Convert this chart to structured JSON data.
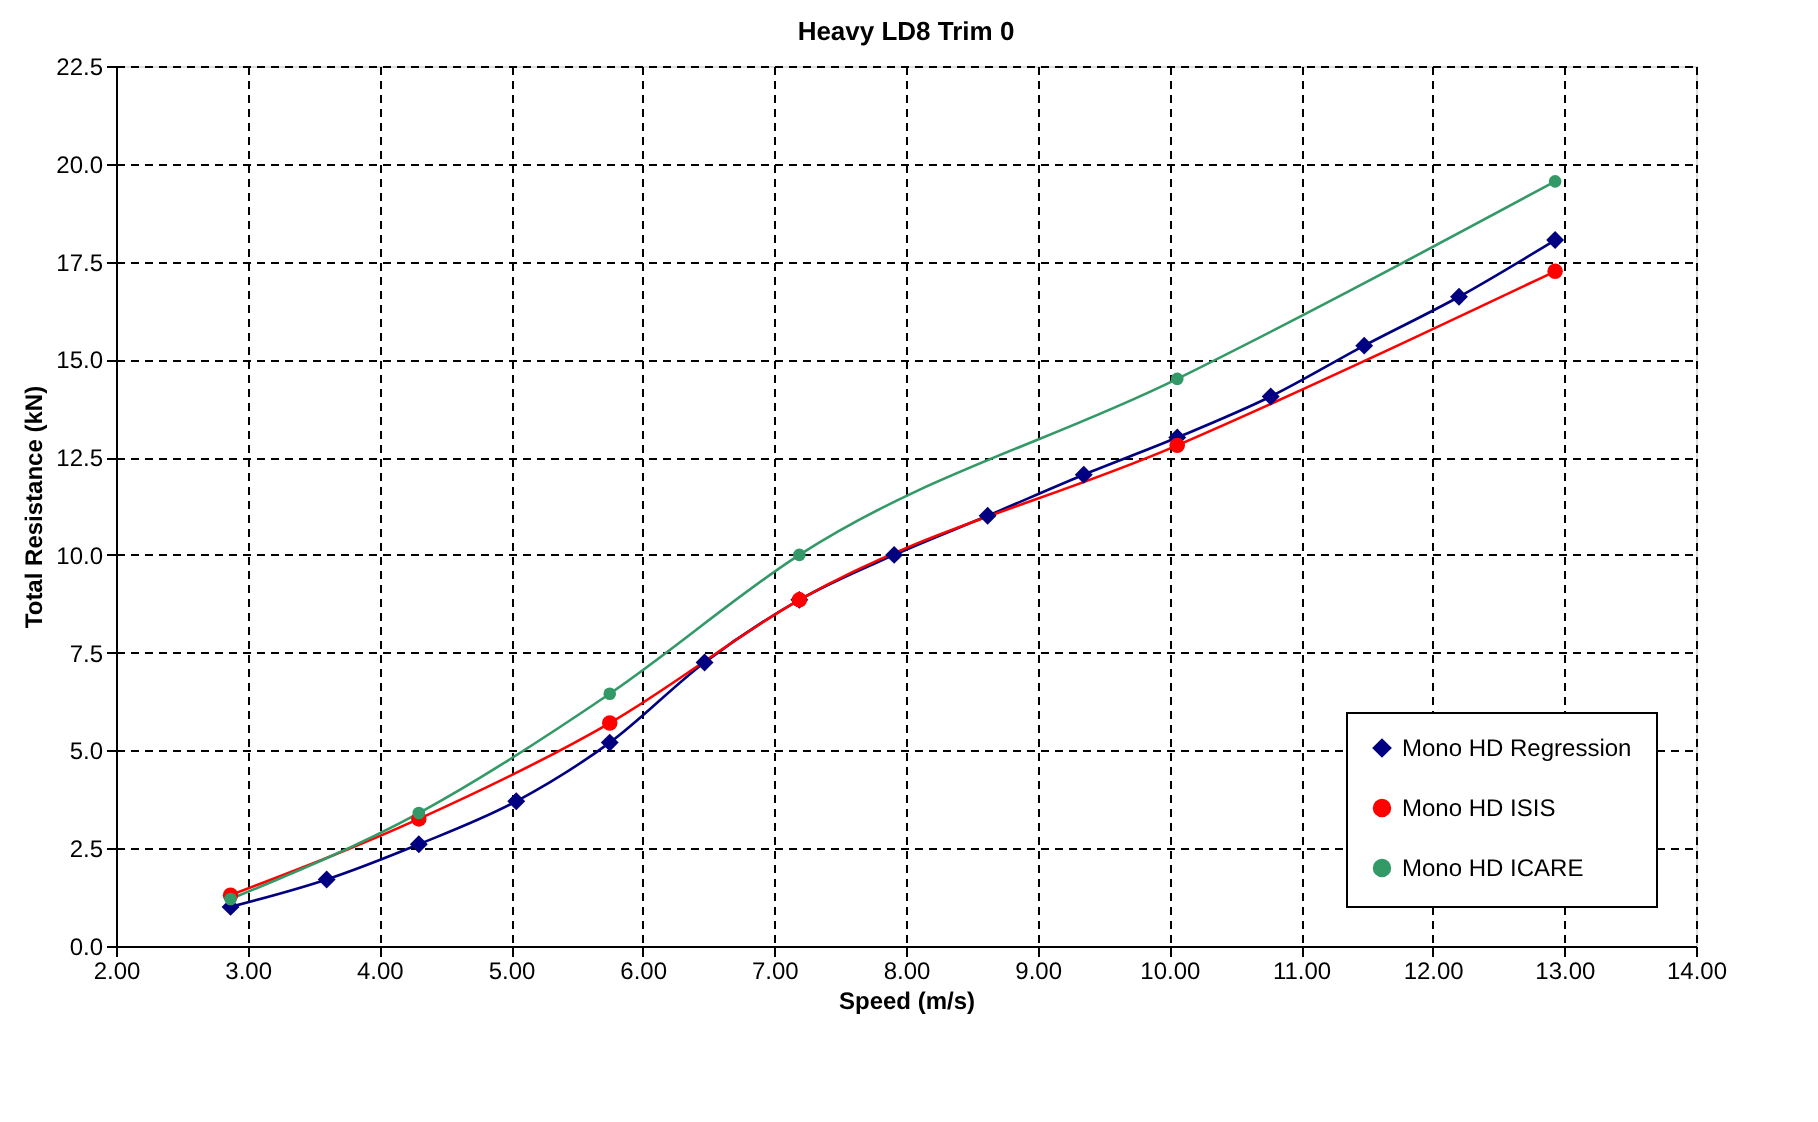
{
  "chart_data": {
    "type": "line",
    "title": "Heavy LD8 Trim 0",
    "xlabel": "Speed (m/s)",
    "ylabel": "Total Resistance (kN)",
    "xlim": [
      2,
      14
    ],
    "xticks": [
      {
        "value": 2,
        "label": "2.00"
      },
      {
        "value": 3,
        "label": "3.00"
      },
      {
        "value": 4,
        "label": "4.00"
      },
      {
        "value": 5,
        "label": "5.00"
      },
      {
        "value": 6,
        "label": "6.00"
      },
      {
        "value": 7,
        "label": "7.00"
      },
      {
        "value": 8,
        "label": "8.00"
      },
      {
        "value": 9,
        "label": "9.00"
      },
      {
        "value": 10,
        "label": "10.00"
      },
      {
        "value": 11,
        "label": "11.00"
      },
      {
        "value": 12,
        "label": "12.00"
      },
      {
        "value": 13,
        "label": "13.00"
      },
      {
        "value": 14,
        "label": "14.00"
      }
    ],
    "ylim": [
      0,
      22.5
    ],
    "yticks": [
      {
        "value": 0,
        "label": "0.0"
      },
      {
        "value": 2.5,
        "label": "2.5"
      },
      {
        "value": 5,
        "label": "5.0"
      },
      {
        "value": 7.5,
        "label": "7.5"
      },
      {
        "value": 10,
        "label": "10.0"
      },
      {
        "value": 12.5,
        "label": "12.5"
      },
      {
        "value": 15,
        "label": "15.0"
      },
      {
        "value": 17.5,
        "label": "17.5"
      },
      {
        "value": 20,
        "label": "20.0"
      },
      {
        "value": 22.5,
        "label": "22.5"
      }
    ],
    "grid": true,
    "legend": "bottom right",
    "line_style": "solid",
    "series": [
      {
        "name": "Mono HD Regression",
        "color": "#000080",
        "marker": "diamond",
        "x": [
          2.87,
          3.6,
          4.3,
          5.04,
          5.75,
          6.47,
          7.19,
          7.91,
          8.62,
          9.35,
          10.06,
          10.77,
          11.48,
          12.2,
          12.93
        ],
        "values": [
          1.0,
          1.7,
          2.6,
          3.7,
          5.2,
          7.25,
          8.85,
          10.0,
          11.0,
          12.05,
          13.0,
          14.05,
          15.35,
          16.6,
          18.05
        ]
      },
      {
        "name": "Mono HD ISIS",
        "color": "#ff0000",
        "marker": "circle",
        "x": [
          2.87,
          4.3,
          5.75,
          7.19,
          10.06,
          12.93
        ],
        "values": [
          1.3,
          3.25,
          5.7,
          8.85,
          12.8,
          17.25
        ]
      },
      {
        "name": "Mono HD ICARE",
        "color": "#339966",
        "marker": "circle",
        "x": [
          2.87,
          4.3,
          5.75,
          7.19,
          10.06,
          12.93
        ],
        "values": [
          1.2,
          3.4,
          6.45,
          10.0,
          14.5,
          19.55
        ]
      }
    ]
  }
}
